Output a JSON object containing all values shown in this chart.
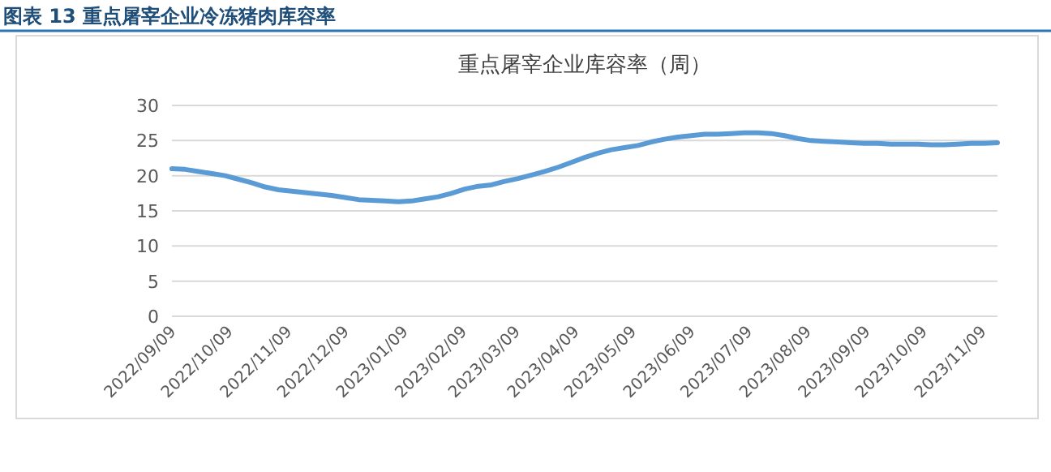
{
  "chart_data": {
    "type": "line",
    "title": "图表 13  重点屠宰企业冷冻猪肉库容率",
    "subtitle": "重点屠宰企业库容率（周）",
    "x": [
      "2022-09-09",
      "2022-09-16",
      "2022-09-23",
      "2022-09-30",
      "2022-10-07",
      "2022-10-14",
      "2022-10-21",
      "2022-10-28",
      "2022-11-04",
      "2022-11-11",
      "2022-11-18",
      "2022-11-25",
      "2022-12-02",
      "2022-12-09",
      "2022-12-16",
      "2022-12-23",
      "2022-12-30",
      "2023-01-06",
      "2023-01-13",
      "2023-01-20",
      "2023-01-27",
      "2023-02-03",
      "2023-02-10",
      "2023-02-17",
      "2023-02-24",
      "2023-03-03",
      "2023-03-10",
      "2023-03-17",
      "2023-03-24",
      "2023-03-31",
      "2023-04-07",
      "2023-04-14",
      "2023-04-21",
      "2023-04-28",
      "2023-05-05",
      "2023-05-12",
      "2023-05-19",
      "2023-05-26",
      "2023-06-02",
      "2023-06-09",
      "2023-06-16",
      "2023-06-23",
      "2023-06-30",
      "2023-07-07",
      "2023-07-14",
      "2023-07-21",
      "2023-07-28",
      "2023-08-04",
      "2023-08-11",
      "2023-08-18",
      "2023-08-25",
      "2023-09-01",
      "2023-09-08",
      "2023-09-15",
      "2023-09-22",
      "2023-09-29",
      "2023-10-06",
      "2023-10-13",
      "2023-10-20",
      "2023-10-27",
      "2023-11-03",
      "2023-11-10",
      "2023-11-17"
    ],
    "series": [
      {
        "color": "#5b9bd5",
        "values": [
          21.0,
          20.9,
          20.6,
          20.3,
          20.0,
          19.5,
          19.0,
          18.4,
          18.0,
          17.8,
          17.6,
          17.4,
          17.2,
          16.9,
          16.6,
          16.5,
          16.4,
          16.3,
          16.4,
          16.7,
          17.0,
          17.5,
          18.1,
          18.5,
          18.7,
          19.2,
          19.6,
          20.1,
          20.6,
          21.2,
          21.9,
          22.6,
          23.2,
          23.7,
          24.0,
          24.3,
          24.8,
          25.2,
          25.5,
          25.7,
          25.9,
          25.9,
          26.0,
          26.1,
          26.1,
          26.0,
          25.7,
          25.3,
          25.0,
          24.9,
          24.8,
          24.7,
          24.6,
          24.6,
          24.5,
          24.5,
          24.5,
          24.4,
          24.4,
          24.5,
          24.6,
          24.6,
          24.7
        ]
      }
    ],
    "xlim": [
      "2022-09-09",
      "2023-11-17"
    ],
    "xticks": [
      {
        "value": "2022-09-09",
        "label": "2022/09/09"
      },
      {
        "value": "2022-10-09",
        "label": "2022/10/09"
      },
      {
        "value": "2022-11-09",
        "label": "2022/11/09"
      },
      {
        "value": "2022-12-09",
        "label": "2022/12/09"
      },
      {
        "value": "2023-01-09",
        "label": "2023/01/09"
      },
      {
        "value": "2023-02-09",
        "label": "2023/02/09"
      },
      {
        "value": "2023-03-09",
        "label": "2023/03/09"
      },
      {
        "value": "2023-04-09",
        "label": "2023/04/09"
      },
      {
        "value": "2023-05-09",
        "label": "2023/05/09"
      },
      {
        "value": "2023-06-09",
        "label": "2023/06/09"
      },
      {
        "value": "2023-07-09",
        "label": "2023/07/09"
      },
      {
        "value": "2023-08-09",
        "label": "2023/08/09"
      },
      {
        "value": "2023-09-09",
        "label": "2023/09/09"
      },
      {
        "value": "2023-10-09",
        "label": "2023/10/09"
      },
      {
        "value": "2023-11-09",
        "label": "2023/11/09"
      }
    ],
    "ylim": [
      0,
      30
    ],
    "yticks": [
      0,
      5,
      10,
      15,
      20,
      25,
      30
    ],
    "grid": "y",
    "marker": "none",
    "line_style": "solid"
  }
}
